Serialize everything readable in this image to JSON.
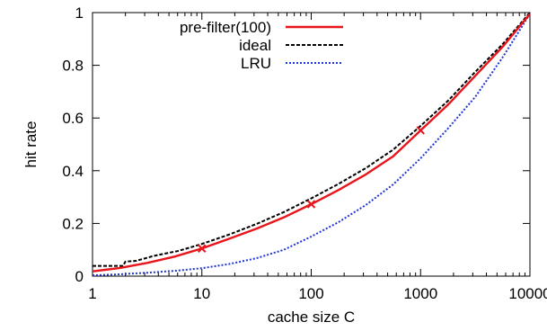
{
  "chart_data": {
    "type": "line",
    "title": "",
    "xlabel": "cache size C",
    "ylabel": "hit rate",
    "xscale": "log",
    "xlim": [
      1,
      10000
    ],
    "ylim": [
      0,
      1
    ],
    "x_ticks": [
      1,
      10,
      100,
      1000,
      10000
    ],
    "x_tick_labels": [
      "1",
      "10",
      "100",
      "1000",
      "10000"
    ],
    "y_ticks": [
      0,
      0.2,
      0.4,
      0.6,
      0.8,
      1
    ],
    "y_tick_labels": [
      "0",
      "0.2",
      "0.4",
      "0.6",
      "0.8",
      "1"
    ],
    "grid": false,
    "legend_position": "top-left",
    "series": [
      {
        "name": "pre-filter(100)",
        "color": "#e8151b",
        "style": "solid",
        "x": [
          1,
          1.78,
          3.16,
          5.62,
          10,
          17.8,
          31.6,
          56.2,
          100,
          178,
          316,
          562,
          1000,
          1778,
          3162,
          5623,
          10000
        ],
        "y": [
          0.018,
          0.031,
          0.05,
          0.074,
          0.105,
          0.142,
          0.18,
          0.223,
          0.273,
          0.327,
          0.386,
          0.455,
          0.553,
          0.65,
          0.76,
          0.87,
          0.995
        ],
        "markers": {
          "symbol": "x",
          "x": [
            10,
            100,
            1000
          ],
          "y": [
            0.105,
            0.273,
            0.553
          ]
        }
      },
      {
        "name": "ideal",
        "color": "#000000",
        "style": "dashed",
        "x": [
          1,
          1.6,
          1.9,
          2.0,
          2.5,
          3.0,
          3.5,
          4.5,
          6,
          8,
          10,
          17.8,
          31.6,
          56.2,
          100,
          178,
          316,
          562,
          1000,
          1778,
          3162,
          5623,
          10000
        ],
        "y": [
          0.039,
          0.039,
          0.039,
          0.055,
          0.058,
          0.067,
          0.075,
          0.085,
          0.095,
          0.11,
          0.122,
          0.158,
          0.198,
          0.243,
          0.295,
          0.35,
          0.41,
          0.48,
          0.57,
          0.665,
          0.775,
          0.88,
          1.0
        ]
      },
      {
        "name": "LRU",
        "color": "#1f34d6",
        "style": "dotted",
        "x": [
          1,
          1.78,
          3.16,
          5.62,
          10,
          17.8,
          31.6,
          56.2,
          100,
          178,
          316,
          562,
          1000,
          1778,
          3162,
          5623,
          10000
        ],
        "y": [
          0.003,
          0.007,
          0.013,
          0.02,
          0.03,
          0.046,
          0.068,
          0.1,
          0.15,
          0.205,
          0.27,
          0.348,
          0.447,
          0.56,
          0.68,
          0.83,
          0.995
        ]
      }
    ]
  }
}
